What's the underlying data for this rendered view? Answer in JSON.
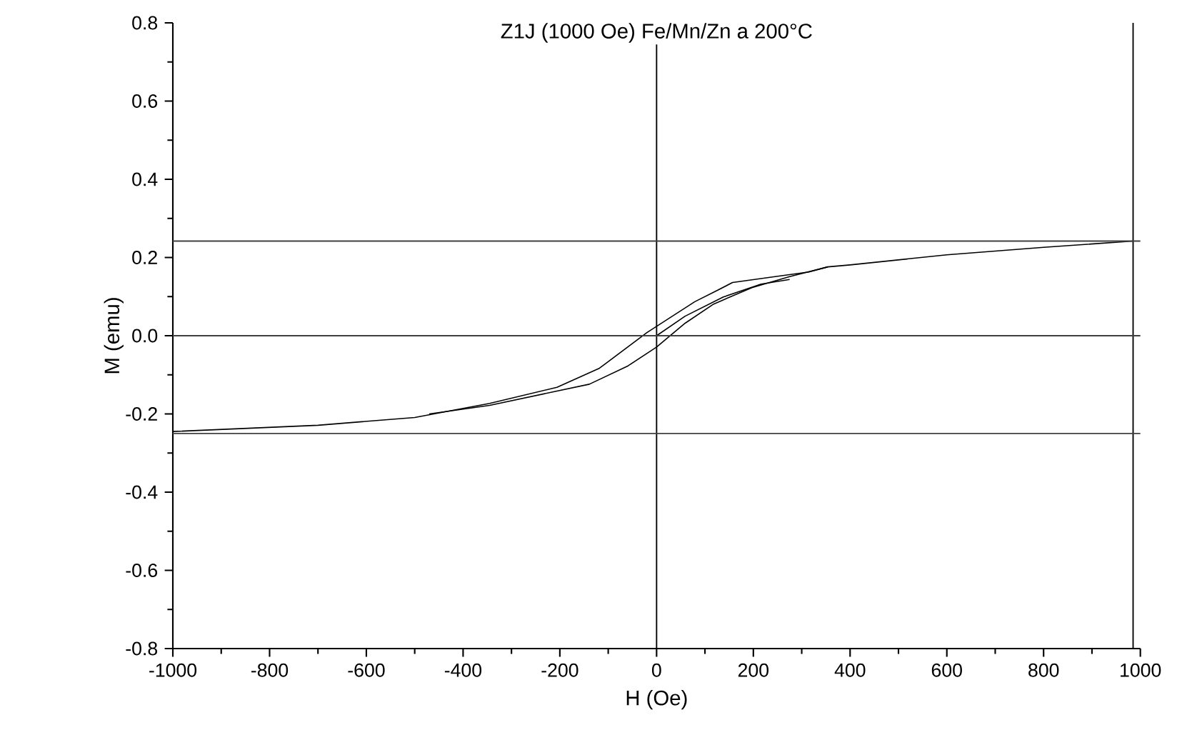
{
  "chart_data": {
    "type": "line",
    "title": "Z1J (1000 Oe)  Fe/Mn/Zn  a 200°C",
    "xlabel": "H (Oe)",
    "ylabel": "M (emu)",
    "xlim": [
      -1000,
      1000
    ],
    "ylim": [
      -0.8,
      0.8
    ],
    "xticks": [
      -1000,
      -800,
      -600,
      -400,
      -200,
      0,
      200,
      400,
      600,
      800,
      1000
    ],
    "yticks": [
      {
        "value": -0.8,
        "label": "-0.8"
      },
      {
        "value": -0.6,
        "label": "-0.6"
      },
      {
        "value": -0.4,
        "label": "-0.4"
      },
      {
        "value": -0.2,
        "label": "-0.2"
      },
      {
        "value": 0,
        "label": "0.0"
      },
      {
        "value": 0.2,
        "label": "0.2"
      },
      {
        "value": 0.4,
        "label": "0.4"
      },
      {
        "value": 0.6,
        "label": "0.6"
      },
      {
        "value": 0.8,
        "label": "0.8"
      }
    ],
    "series": [
      {
        "color": "#000000",
        "x": [
          985,
          800,
          600,
          400,
          354,
          315,
          245,
          157,
          127,
          79,
          0,
          -20,
          -118,
          -206,
          -345,
          -500,
          -700,
          -1000
        ],
        "values": [
          0.242,
          0.226,
          0.207,
          0.181,
          0.176,
          0.163,
          0.151,
          0.136,
          0.117,
          0.087,
          0.024,
          0.008,
          -0.083,
          -0.132,
          -0.173,
          -0.209,
          -0.229,
          -0.245
        ]
      },
      {
        "color": "#000000",
        "x": [
          -470,
          -345,
          -139,
          -59,
          0,
          59,
          118,
          197,
          275,
          354
        ],
        "values": [
          -0.2,
          -0.178,
          -0.124,
          -0.077,
          -0.029,
          0.032,
          0.081,
          0.123,
          0.151,
          0.176
        ]
      },
      {
        "color": "#000000",
        "x": [
          0,
          59,
          138,
          216,
          275
        ],
        "values": [
          0,
          0.05,
          0.099,
          0.132,
          0.144
        ]
      }
    ],
    "ref_lines": [
      {
        "axis": "x",
        "value": 0,
        "color": "#000000"
      },
      {
        "axis": "x",
        "value": 985,
        "color": "#000000"
      },
      {
        "axis": "y",
        "value": 0,
        "color": "#404040"
      },
      {
        "axis": "y",
        "value": 0.242,
        "color": "#404040"
      },
      {
        "axis": "y",
        "value": -0.25,
        "color": "#404040"
      }
    ],
    "grid": false,
    "marker": "none",
    "line_style": "solid"
  }
}
